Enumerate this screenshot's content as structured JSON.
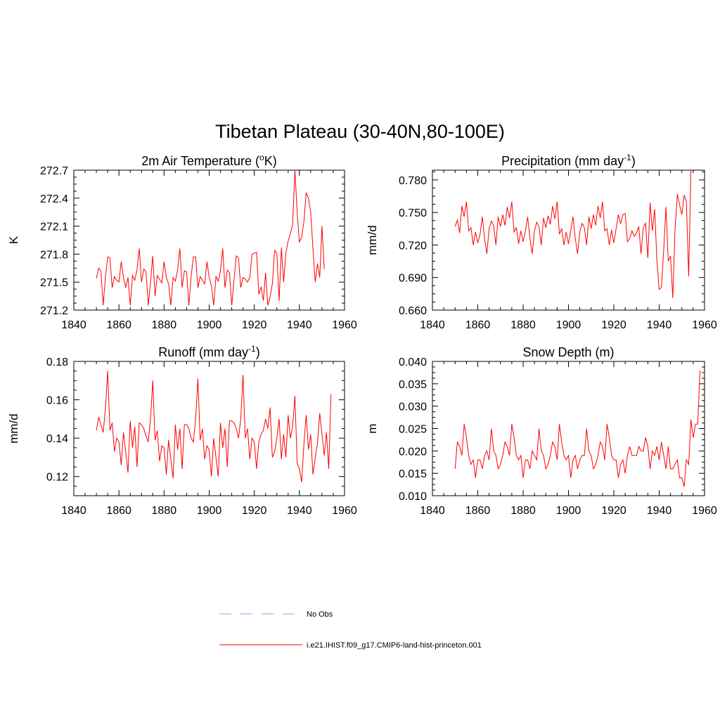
{
  "figure": {
    "title": "Tibetan Plateau (30-40N,80-100E)"
  },
  "legend": {
    "entries": [
      {
        "label": "No Obs",
        "color": "#9999ee",
        "style": "dashed"
      },
      {
        "label": "i.e21.IHIST.f09_g17.CMIP6-land-hist-princeton.001",
        "color": "#ff0000",
        "style": "solid"
      }
    ]
  },
  "colors": {
    "series": "#ff0000",
    "obs": "#9999ee",
    "axis": "#000000"
  },
  "chart_data": [
    {
      "id": "tsa",
      "type": "line",
      "title": "2m Air Temperature (",
      "title_sup": "o",
      "title_end": "K)",
      "xlabel": "",
      "ylabel": "K",
      "xlim": [
        1840,
        1960
      ],
      "ylim": [
        271.2,
        272.7
      ],
      "xticks": [
        1840,
        1860,
        1880,
        1900,
        1920,
        1940,
        1960
      ],
      "xtick_labels": [
        "1840",
        "1860",
        "1880",
        "1900",
        "1920",
        "1940",
        "1960"
      ],
      "yticks": [
        271.2,
        271.5,
        271.8,
        272.1,
        272.4,
        272.7
      ],
      "ytick_labels": [
        "271.2",
        "271.5",
        "271.8",
        "272.1",
        "272.4",
        "272.7"
      ],
      "x_start": 1850,
      "series": [
        {
          "color": "#ff0000",
          "values": [
            271.54,
            271.65,
            271.62,
            271.25,
            271.55,
            271.77,
            271.76,
            271.44,
            271.56,
            271.52,
            271.5,
            271.72,
            271.55,
            271.44,
            271.55,
            271.25,
            271.57,
            271.52,
            271.63,
            271.86,
            271.5,
            271.64,
            271.61,
            271.25,
            271.5,
            271.78,
            271.35,
            271.57,
            271.53,
            271.49,
            271.72,
            271.55,
            271.48,
            271.25,
            271.55,
            271.51,
            271.63,
            271.86,
            271.44,
            271.62,
            271.61,
            271.25,
            271.56,
            271.77,
            271.77,
            271.44,
            271.56,
            271.52,
            271.48,
            271.72,
            271.55,
            271.46,
            271.25,
            271.56,
            271.51,
            271.62,
            271.86,
            271.44,
            271.63,
            271.6,
            271.25,
            271.52,
            271.78,
            271.76,
            271.44,
            271.55,
            271.53,
            271.5,
            271.55,
            271.8,
            271.81,
            271.82,
            271.37,
            271.45,
            271.3,
            271.6,
            271.25,
            271.34,
            271.48,
            271.84,
            271.81,
            271.3,
            271.87,
            271.5,
            271.81,
            271.94,
            272.02,
            272.12,
            272.7,
            272.25,
            271.93,
            271.98,
            272.15,
            272.46,
            272.4,
            272.25,
            271.86,
            271.5,
            271.7,
            271.55,
            272.1,
            271.64
          ]
        }
      ]
    },
    {
      "id": "prect",
      "type": "line",
      "title": "Precipitation (mm day",
      "title_sup": "-1",
      "title_end": ")",
      "xlabel": "",
      "ylabel": "mm/d",
      "xlim": [
        1840,
        1960
      ],
      "ylim": [
        0.66,
        0.789
      ],
      "xticks": [
        1840,
        1860,
        1880,
        1900,
        1920,
        1940,
        1960
      ],
      "xtick_labels": [
        "1840",
        "1860",
        "1880",
        "1900",
        "1920",
        "1940",
        "1960"
      ],
      "yticks": [
        0.66,
        0.69,
        0.72,
        0.75,
        0.78
      ],
      "ytick_labels": [
        "0.660",
        "0.690",
        "0.720",
        "0.750",
        "0.780"
      ],
      "x_start": 1850,
      "series": [
        {
          "color": "#ff0000",
          "values": [
            0.737,
            0.743,
            0.731,
            0.756,
            0.746,
            0.76,
            0.733,
            0.736,
            0.72,
            0.732,
            0.722,
            0.73,
            0.746,
            0.726,
            0.712,
            0.735,
            0.742,
            0.738,
            0.72,
            0.746,
            0.737,
            0.748,
            0.738,
            0.755,
            0.745,
            0.76,
            0.732,
            0.736,
            0.721,
            0.733,
            0.723,
            0.733,
            0.746,
            0.726,
            0.712,
            0.733,
            0.741,
            0.737,
            0.72,
            0.745,
            0.736,
            0.747,
            0.739,
            0.756,
            0.744,
            0.76,
            0.73,
            0.735,
            0.72,
            0.732,
            0.721,
            0.733,
            0.746,
            0.726,
            0.712,
            0.732,
            0.74,
            0.736,
            0.72,
            0.746,
            0.735,
            0.748,
            0.738,
            0.756,
            0.745,
            0.76,
            0.733,
            0.735,
            0.72,
            0.734,
            0.722,
            0.735,
            0.748,
            0.74,
            0.748,
            0.749,
            0.723,
            0.726,
            0.733,
            0.728,
            0.731,
            0.737,
            0.712,
            0.736,
            0.74,
            0.708,
            0.759,
            0.733,
            0.753,
            0.706,
            0.679,
            0.681,
            0.716,
            0.755,
            0.705,
            0.71,
            0.671,
            0.735,
            0.767,
            0.757,
            0.748,
            0.766,
            0.76,
            0.691,
            0.789
          ]
        }
      ]
    },
    {
      "id": "runoff",
      "type": "line",
      "title": "Runoff (mm day",
      "title_sup": "-1",
      "title_end": ")",
      "xlabel": "",
      "ylabel": "mm/d",
      "xlim": [
        1840,
        1960
      ],
      "ylim": [
        0.11,
        0.18
      ],
      "xticks": [
        1840,
        1860,
        1880,
        1900,
        1920,
        1940,
        1960
      ],
      "xtick_labels": [
        "1840",
        "1860",
        "1880",
        "1900",
        "1920",
        "1940",
        "1960"
      ],
      "yticks": [
        0.12,
        0.14,
        0.16,
        0.18
      ],
      "ytick_labels": [
        "0.12",
        "0.14",
        "0.16",
        "0.18"
      ],
      "x_start": 1850,
      "series": [
        {
          "color": "#ff0000",
          "values": [
            0.144,
            0.151,
            0.147,
            0.143,
            0.155,
            0.175,
            0.144,
            0.148,
            0.133,
            0.14,
            0.138,
            0.126,
            0.143,
            0.133,
            0.122,
            0.149,
            0.135,
            0.146,
            0.125,
            0.148,
            0.147,
            0.145,
            0.141,
            0.138,
            0.15,
            0.17,
            0.139,
            0.144,
            0.128,
            0.136,
            0.135,
            0.121,
            0.139,
            0.129,
            0.119,
            0.147,
            0.134,
            0.145,
            0.124,
            0.147,
            0.147,
            0.145,
            0.14,
            0.138,
            0.15,
            0.171,
            0.139,
            0.145,
            0.129,
            0.136,
            0.134,
            0.12,
            0.14,
            0.13,
            0.12,
            0.148,
            0.135,
            0.145,
            0.125,
            0.149,
            0.149,
            0.148,
            0.145,
            0.14,
            0.15,
            0.173,
            0.14,
            0.145,
            0.129,
            0.14,
            0.138,
            0.124,
            0.138,
            0.142,
            0.144,
            0.15,
            0.145,
            0.156,
            0.13,
            0.133,
            0.14,
            0.15,
            0.129,
            0.142,
            0.13,
            0.152,
            0.14,
            0.146,
            0.162,
            0.127,
            0.124,
            0.117,
            0.137,
            0.152,
            0.134,
            0.142,
            0.121,
            0.13,
            0.137,
            0.153,
            0.142,
            0.131,
            0.143,
            0.124,
            0.163
          ]
        }
      ]
    },
    {
      "id": "snowdp",
      "type": "line",
      "title": "Snow Depth (m)",
      "title_sup": "",
      "title_end": "",
      "xlabel": "",
      "ylabel": "m",
      "xlim": [
        1840,
        1960
      ],
      "ylim": [
        0.01,
        0.04
      ],
      "xticks": [
        1840,
        1860,
        1880,
        1900,
        1920,
        1940,
        1960
      ],
      "xtick_labels": [
        "1840",
        "1860",
        "1880",
        "1900",
        "1920",
        "1940",
        "1960"
      ],
      "yticks": [
        0.01,
        0.015,
        0.02,
        0.025,
        0.03,
        0.035,
        0.04
      ],
      "ytick_labels": [
        "0.010",
        "0.015",
        "0.020",
        "0.025",
        "0.030",
        "0.035",
        "0.040"
      ],
      "x_start": 1850,
      "series": [
        {
          "color": "#ff0000",
          "values": [
            0.016,
            0.022,
            0.021,
            0.019,
            0.026,
            0.023,
            0.019,
            0.017,
            0.018,
            0.014,
            0.018,
            0.018,
            0.016,
            0.019,
            0.02,
            0.018,
            0.025,
            0.02,
            0.019,
            0.016,
            0.017,
            0.019,
            0.022,
            0.021,
            0.019,
            0.026,
            0.023,
            0.019,
            0.018,
            0.019,
            0.014,
            0.018,
            0.018,
            0.016,
            0.02,
            0.019,
            0.018,
            0.025,
            0.02,
            0.019,
            0.016,
            0.017,
            0.019,
            0.022,
            0.021,
            0.018,
            0.026,
            0.022,
            0.019,
            0.018,
            0.019,
            0.014,
            0.018,
            0.019,
            0.016,
            0.018,
            0.019,
            0.019,
            0.025,
            0.02,
            0.019,
            0.016,
            0.017,
            0.019,
            0.022,
            0.021,
            0.018,
            0.026,
            0.023,
            0.019,
            0.018,
            0.018,
            0.014,
            0.017,
            0.018,
            0.015,
            0.019,
            0.021,
            0.019,
            0.019,
            0.019,
            0.021,
            0.02,
            0.02,
            0.023,
            0.021,
            0.016,
            0.02,
            0.019,
            0.021,
            0.018,
            0.022,
            0.019,
            0.016,
            0.021,
            0.016,
            0.016,
            0.017,
            0.018,
            0.014,
            0.014,
            0.012,
            0.018,
            0.017,
            0.027,
            0.023,
            0.026,
            0.026,
            0.038
          ]
        }
      ]
    }
  ]
}
